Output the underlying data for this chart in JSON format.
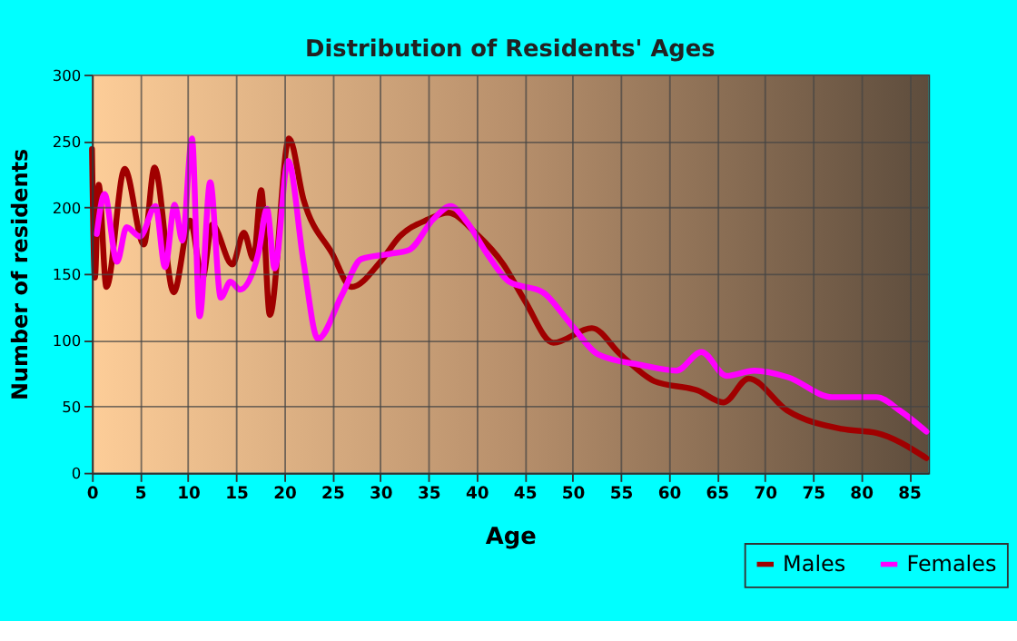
{
  "chart_data": {
    "type": "line",
    "title": "Distribution of Residents' Ages",
    "xlabel": "Age",
    "ylabel": "Number of residents",
    "xlim": [
      0,
      87
    ],
    "ylim": [
      0,
      300
    ],
    "xticks": [
      0,
      5,
      10,
      15,
      20,
      25,
      30,
      35,
      40,
      45,
      50,
      55,
      60,
      65,
      70,
      75,
      80,
      85
    ],
    "yticks": [
      0,
      50,
      100,
      150,
      200,
      250,
      300
    ],
    "grid": true,
    "legend": "bottom right",
    "line_style": "solid",
    "series": [
      {
        "name": "Males",
        "color": "#a00000",
        "x": [
          0,
          0.3,
          0.7,
          1.5,
          3.4,
          5.4,
          6.5,
          8.5,
          10.2,
          11.5,
          12.5,
          14.6,
          15.8,
          16.8,
          17.6,
          18.5,
          20.5,
          22,
          25,
          27,
          30,
          32,
          35,
          37,
          40,
          42.8,
          45,
          48,
          52,
          55,
          58.5,
          63,
          65.7,
          68.3,
          72.3,
          78,
          81.6,
          86.8
        ],
        "values": [
          244,
          147,
          217,
          140,
          229,
          172,
          230,
          136,
          190,
          147,
          187,
          157,
          181,
          161,
          213,
          119,
          252,
          206,
          165,
          140,
          159,
          178,
          191,
          196,
          180,
          157,
          130,
          98,
          109,
          89,
          69,
          62,
          53,
          71,
          47,
          33,
          30,
          11
        ]
      },
      {
        "name": "Females",
        "color": "#ff00ff",
        "x": [
          0.5,
          1.3,
          2.6,
          3.6,
          5,
          6.6,
          7.6,
          8.6,
          9.4,
          10.4,
          11.2,
          12.3,
          13.4,
          14.4,
          15.4,
          17.3,
          18.2,
          19,
          20.4,
          22,
          23.5,
          26,
          28,
          31,
          33,
          35.5,
          37.3,
          39,
          41.1,
          43.4,
          46.9,
          49.8,
          52.7,
          57.3,
          60.8,
          63.4,
          66,
          68.9,
          72.4,
          77,
          81.6,
          84,
          86.8
        ],
        "values": [
          180,
          210,
          159,
          185,
          178,
          201,
          155,
          202,
          175,
          252,
          118,
          219,
          132,
          144,
          138,
          165,
          199,
          154,
          235,
          159,
          101,
          134,
          161,
          165,
          168,
          191,
          201,
          189,
          165,
          144,
          136,
          112,
          89,
          81,
          77,
          91,
          73,
          77,
          72,
          57,
          57,
          47,
          31
        ]
      }
    ]
  }
}
